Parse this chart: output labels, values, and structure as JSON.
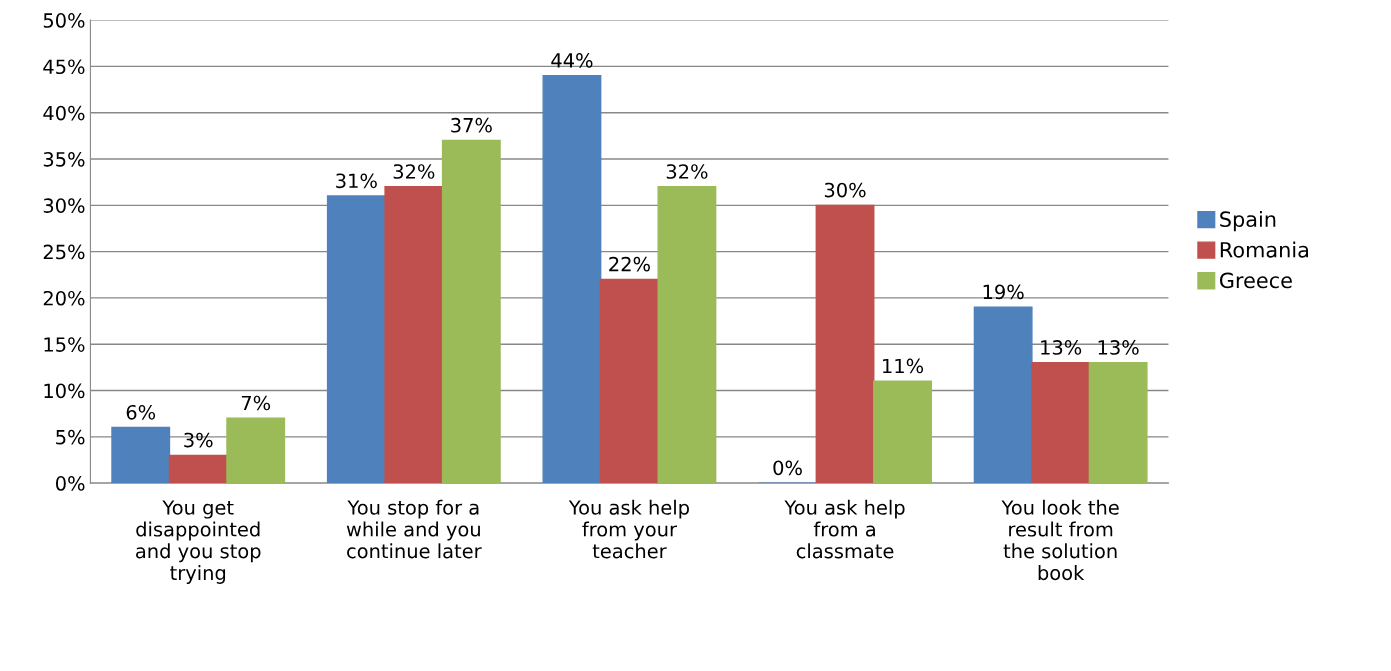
{
  "chart_data": {
    "type": "bar",
    "categories": [
      "You get\ndisappointed\nand you stop\ntrying",
      "You stop for a\nwhile and you\ncontinue later",
      "You ask help\nfrom your\nteacher",
      "You ask help\nfrom a\nclassmate",
      "You look the\nresult from\nthe solution\nbook"
    ],
    "series": [
      {
        "name": "Spain",
        "color": "#4f81bd",
        "values": [
          6,
          31,
          44,
          0,
          19
        ],
        "value_labels": [
          "6%",
          "31%",
          "44%",
          "0%",
          "19%"
        ]
      },
      {
        "name": "Romania",
        "color": "#c0504d",
        "values": [
          3,
          32,
          22,
          30,
          13
        ],
        "value_labels": [
          "3%",
          "32%",
          "22%",
          "30%",
          "13%"
        ]
      },
      {
        "name": "Greece",
        "color": "#9bbb59",
        "values": [
          7,
          37,
          32,
          11,
          13
        ],
        "value_labels": [
          "7%",
          "37%",
          "32%",
          "11%",
          "13%"
        ]
      }
    ],
    "ylim": [
      0,
      50
    ],
    "yticks": [
      {
        "value": 0,
        "label": "0%"
      },
      {
        "value": 5,
        "label": "5%"
      },
      {
        "value": 10,
        "label": "10%"
      },
      {
        "value": 15,
        "label": "15%"
      },
      {
        "value": 20,
        "label": "20%"
      },
      {
        "value": 25,
        "label": "25%"
      },
      {
        "value": 30,
        "label": "30%"
      },
      {
        "value": 35,
        "label": "35%"
      },
      {
        "value": 40,
        "label": "40%"
      },
      {
        "value": 45,
        "label": "45%"
      },
      {
        "value": 50,
        "label": "50%"
      }
    ],
    "grid": "y",
    "legend": "right"
  }
}
